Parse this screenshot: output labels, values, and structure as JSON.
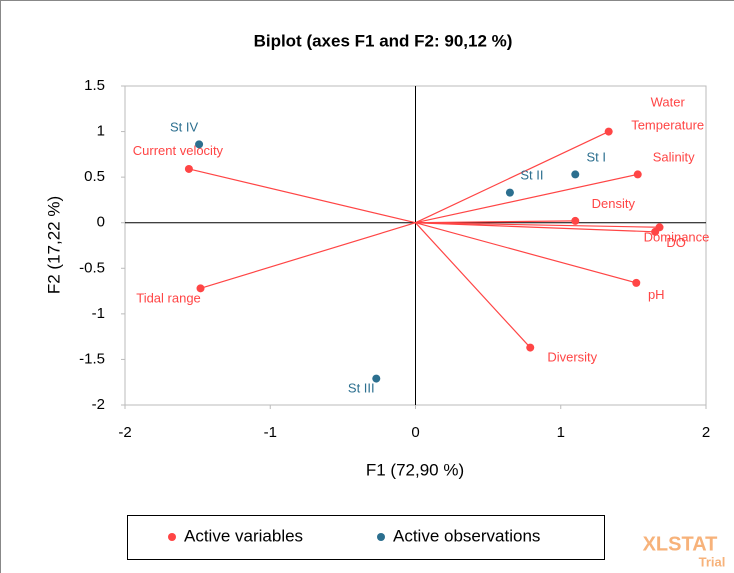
{
  "chart_data": {
    "type": "scatter",
    "title": "Biplot (axes F1 and F2: 90,12 %)",
    "x_label": "F1 (72,90 %)",
    "y_label": "F2 (17,22 %)",
    "xlim": [
      -2,
      2
    ],
    "xticks": [
      -2,
      -1,
      0,
      1,
      2
    ],
    "ylim": [
      -2,
      1.5
    ],
    "yticks": [
      -2,
      -1.5,
      -1,
      -0.5,
      0,
      0.5,
      1,
      1.5
    ],
    "grid": false,
    "legend": "bottom",
    "series": [
      {
        "name": "Active variables",
        "color": "#ff4545",
        "lines_from_origin": true,
        "labels": [
          "Water\nTemperature",
          "Salinity",
          "Density",
          "Dominance",
          "DO",
          "pH",
          "Diversity",
          "Tidal range",
          "Current velocity"
        ],
        "x": [
          1.33,
          1.53,
          1.1,
          1.68,
          1.65,
          1.52,
          0.79,
          -1.48,
          -1.56
        ],
        "values": [
          1.0,
          0.53,
          0.02,
          -0.05,
          -0.1,
          -0.66,
          -1.37,
          -0.72,
          0.59
        ]
      },
      {
        "name": "Active observations",
        "color": "#2c6f8f",
        "lines_from_origin": false,
        "labels": [
          "St I",
          "St II",
          "St III",
          "St IV"
        ],
        "x": [
          1.1,
          0.65,
          -0.27,
          -1.49
        ],
        "values": [
          0.53,
          0.33,
          -1.71,
          0.86
        ]
      }
    ],
    "annotations": [
      "XLSTAT",
      "Trial"
    ]
  }
}
